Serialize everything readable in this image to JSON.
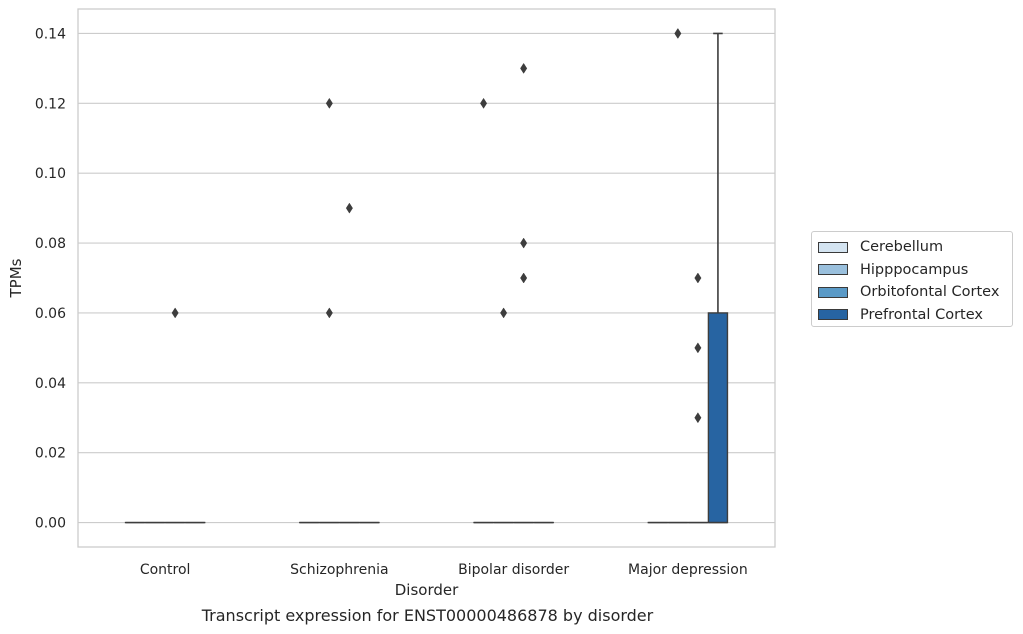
{
  "caption": "Transcript expression for ENST00000486878 by disorder",
  "chart_data": {
    "type": "box",
    "xlabel": "Disorder",
    "ylabel": "TPMs",
    "ylim": [
      -0.007,
      0.147
    ],
    "yticks": [
      0.0,
      0.02,
      0.04,
      0.06,
      0.08,
      0.1,
      0.12,
      0.14
    ],
    "ytick_labels": [
      "0.00",
      "0.02",
      "0.04",
      "0.06",
      "0.08",
      "0.10",
      "0.12",
      "0.14"
    ],
    "grid": true,
    "legend_placement": "center-right outside",
    "categories": [
      "Control",
      "Schizophrenia",
      "Bipolar disorder",
      "Major depression"
    ],
    "series": [
      {
        "name": "Cerebellum",
        "color": "#d4e4f1",
        "boxes": [
          {
            "q1": 0,
            "median": 0,
            "q3": 0,
            "whisker_low": 0,
            "whisker_high": 0,
            "outliers": []
          },
          {
            "q1": 0,
            "median": 0,
            "q3": 0,
            "whisker_low": 0,
            "whisker_high": 0,
            "outliers": []
          },
          {
            "q1": 0,
            "median": 0,
            "q3": 0,
            "whisker_low": 0,
            "whisker_high": 0,
            "outliers": [
              0.12
            ]
          },
          {
            "q1": 0,
            "median": 0,
            "q3": 0,
            "whisker_low": 0,
            "whisker_high": 0,
            "outliers": []
          }
        ]
      },
      {
        "name": "Hipppocampus",
        "color": "#9ac0dd",
        "boxes": [
          {
            "q1": 0,
            "median": 0,
            "q3": 0,
            "whisker_low": 0,
            "whisker_high": 0,
            "outliers": []
          },
          {
            "q1": 0,
            "median": 0,
            "q3": 0,
            "whisker_low": 0,
            "whisker_high": 0,
            "outliers": [
              0.12,
              0.06
            ]
          },
          {
            "q1": 0,
            "median": 0,
            "q3": 0,
            "whisker_low": 0,
            "whisker_high": 0,
            "outliers": [
              0.06
            ]
          },
          {
            "q1": 0,
            "median": 0,
            "q3": 0,
            "whisker_low": 0,
            "whisker_high": 0,
            "outliers": [
              0.14
            ]
          }
        ]
      },
      {
        "name": "Orbitofontal Cortex",
        "color": "#5a9ac7",
        "boxes": [
          {
            "q1": 0,
            "median": 0,
            "q3": 0,
            "whisker_low": 0,
            "whisker_high": 0,
            "outliers": [
              0.06
            ]
          },
          {
            "q1": 0,
            "median": 0,
            "q3": 0,
            "whisker_low": 0,
            "whisker_high": 0,
            "outliers": [
              0.09
            ]
          },
          {
            "q1": 0,
            "median": 0,
            "q3": 0,
            "whisker_low": 0,
            "whisker_high": 0,
            "outliers": [
              0.13,
              0.08,
              0.07
            ]
          },
          {
            "q1": 0,
            "median": 0,
            "q3": 0,
            "whisker_low": 0,
            "whisker_high": 0,
            "outliers": [
              0.07,
              0.05,
              0.03
            ]
          }
        ]
      },
      {
        "name": "Prefrontal Cortex",
        "color": "#2764a2",
        "boxes": [
          {
            "q1": 0,
            "median": 0,
            "q3": 0,
            "whisker_low": 0,
            "whisker_high": 0,
            "outliers": []
          },
          {
            "q1": 0,
            "median": 0,
            "q3": 0,
            "whisker_low": 0,
            "whisker_high": 0,
            "outliers": []
          },
          {
            "q1": 0,
            "median": 0,
            "q3": 0,
            "whisker_low": 0,
            "whisker_high": 0,
            "outliers": []
          },
          {
            "q1": 0,
            "median": 0,
            "q3": 0.06,
            "whisker_low": 0,
            "whisker_high": 0.14,
            "outliers": []
          }
        ]
      }
    ]
  }
}
